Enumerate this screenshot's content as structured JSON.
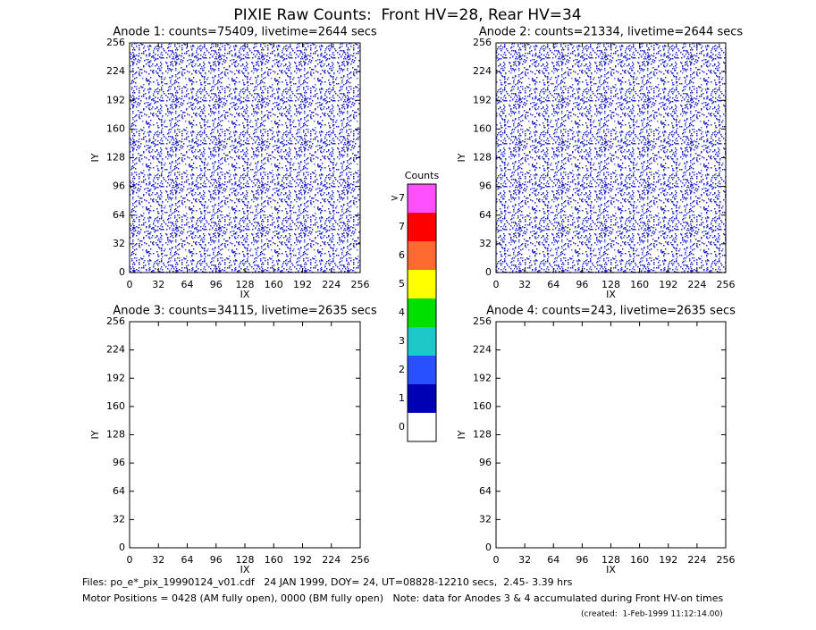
{
  "page": {
    "title": "PIXIE Raw Counts:  Front HV=28, Rear HV=34",
    "notes": [
      "Files: po_e*_pix_19990124_v01.cdf   24 JAN 1999, DOY= 24, UT=08828-12210 secs,  2.45- 3.39 hrs",
      "Motor Positions = 0428 (AM fully open), 0000 (BM fully open)   Note: data for Anodes 3 & 4 accumulated during Front HV-on times",
      "(created:  1-Feb-1999 11:12:14.00)"
    ]
  },
  "chart_data": [
    {
      "type": "heatmap",
      "title": "Anode 1: counts=75409, livetime=2644 secs",
      "xlabel": "IX",
      "ylabel": "IY",
      "xlim": [
        0,
        256
      ],
      "ylim": [
        0,
        256
      ],
      "xticks": [
        0,
        32,
        64,
        96,
        128,
        160,
        192,
        224,
        256
      ],
      "yticks": [
        0,
        32,
        64,
        96,
        128,
        160,
        192,
        224,
        256
      ]
    },
    {
      "type": "heatmap",
      "title": "Anode 2: counts=21334, livetime=2644 secs",
      "xlabel": "IX",
      "ylabel": "IY",
      "xlim": [
        0,
        256
      ],
      "ylim": [
        0,
        256
      ],
      "xticks": [
        0,
        32,
        64,
        96,
        128,
        160,
        192,
        224,
        256
      ],
      "yticks": [
        0,
        32,
        64,
        96,
        128,
        160,
        192,
        224,
        256
      ]
    },
    {
      "type": "heatmap",
      "title": "Anode 3: counts=34115, livetime=2635 secs",
      "xlabel": "IX",
      "ylabel": "IY",
      "xlim": [
        0,
        256
      ],
      "ylim": [
        0,
        256
      ],
      "xticks": [
        0,
        32,
        64,
        96,
        128,
        160,
        192,
        224,
        256
      ],
      "yticks": [
        0,
        32,
        64,
        96,
        128,
        160,
        192,
        224,
        256
      ]
    },
    {
      "type": "heatmap",
      "title": "Anode 4: counts=243, livetime=2635 secs",
      "xlabel": "IX",
      "ylabel": "IY",
      "xlim": [
        0,
        256
      ],
      "ylim": [
        0,
        256
      ],
      "xticks": [
        0,
        32,
        64,
        96,
        128,
        160,
        192,
        224,
        256
      ],
      "yticks": [
        0,
        32,
        64,
        96,
        128,
        160,
        192,
        224,
        256
      ]
    },
    {
      "type": "colorbar",
      "title": "Counts",
      "labels": [
        "0",
        "1",
        "2",
        "3",
        "4",
        "5",
        "6",
        "7",
        ">7"
      ],
      "colors": [
        "#ffffff",
        "#0000b4",
        "#2850ff",
        "#1ec8c8",
        "#00e000",
        "#ffff00",
        "#ff6a30",
        "#ff0000",
        "#ff50ff"
      ]
    }
  ]
}
